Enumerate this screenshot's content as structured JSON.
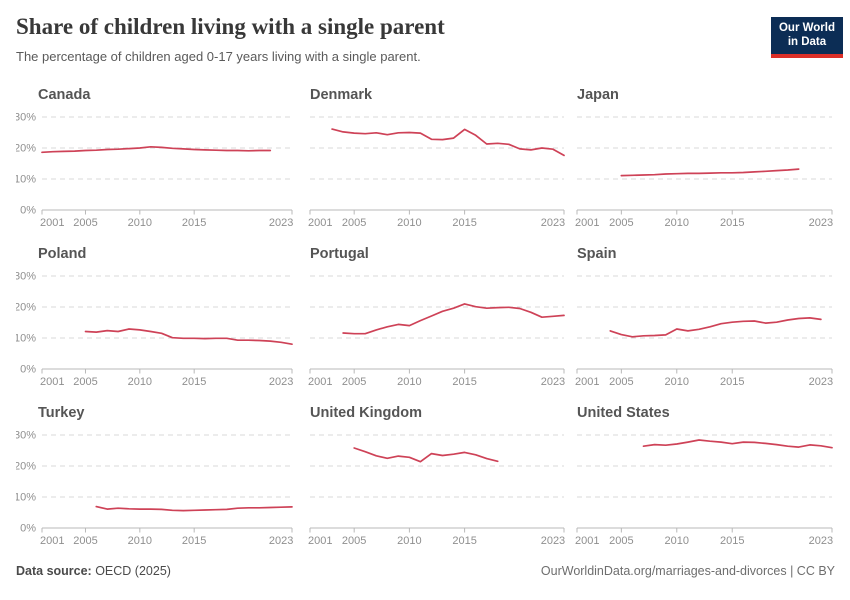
{
  "header": {
    "title": "Share of children living with a single parent",
    "subtitle": "The percentage of children aged 0-17 years living with a single parent.",
    "logo": {
      "line1": "Our World",
      "line2": "in Data",
      "bg_color": "#0c2d55",
      "accent_color": "#dc2f28"
    }
  },
  "footer": {
    "source_label": "Data source:",
    "source_value": " OECD (2025)",
    "right_text": "OurWorldinData.org/marriages-and-divorces | CC BY"
  },
  "colors": {
    "line": "#ce4257",
    "gridline": "#dadada",
    "axis": "#b8b8b8",
    "tick_text": "#8f8f8f"
  },
  "chart_data": {
    "type": "line",
    "title": "Share of children living with a single parent",
    "xlabel": "",
    "ylabel": "",
    "x_domain": [
      2001,
      2024
    ],
    "x_ticks": [
      2001,
      2005,
      2010,
      2015,
      2023
    ],
    "y_ticks": [
      0,
      10,
      20,
      30
    ],
    "y_tick_labels": [
      "0%",
      "10%",
      "20%",
      "30%"
    ],
    "ylim": [
      0,
      33
    ],
    "grid": "horizontal-dashed",
    "legend": "none",
    "line_color": "#ce4257",
    "charts": [
      {
        "name": "Canada",
        "years": [
          2001,
          2002,
          2003,
          2004,
          2005,
          2006,
          2007,
          2008,
          2009,
          2010,
          2011,
          2012,
          2013,
          2014,
          2015,
          2016,
          2017,
          2018,
          2019,
          2020,
          2021,
          2022
        ],
        "values": [
          18.6,
          18.8,
          18.9,
          19.0,
          19.2,
          19.3,
          19.5,
          19.6,
          19.8,
          20.0,
          20.4,
          20.2,
          19.9,
          19.7,
          19.5,
          19.4,
          19.3,
          19.2,
          19.2,
          19.1,
          19.2,
          19.2
        ]
      },
      {
        "name": "Denmark",
        "years": [
          2003,
          2004,
          2005,
          2006,
          2007,
          2008,
          2009,
          2010,
          2011,
          2012,
          2013,
          2014,
          2015,
          2016,
          2017,
          2018,
          2019,
          2020,
          2021,
          2022,
          2023,
          2024
        ],
        "values": [
          26.1,
          25.2,
          24.8,
          24.6,
          24.9,
          24.3,
          24.9,
          25.0,
          24.8,
          22.8,
          22.7,
          23.2,
          26.0,
          24.1,
          21.3,
          21.5,
          21.2,
          19.7,
          19.4,
          20.0,
          19.6,
          17.6
        ]
      },
      {
        "name": "Japan",
        "years": [
          2005,
          2006,
          2007,
          2008,
          2009,
          2010,
          2011,
          2012,
          2013,
          2014,
          2015,
          2016,
          2017,
          2018,
          2019,
          2020,
          2021
        ],
        "values": [
          11.1,
          11.2,
          11.3,
          11.4,
          11.6,
          11.7,
          11.8,
          11.8,
          11.9,
          12.0,
          12.0,
          12.1,
          12.3,
          12.5,
          12.7,
          12.9,
          13.2
        ]
      },
      {
        "name": "Poland",
        "years": [
          2005,
          2006,
          2007,
          2008,
          2009,
          2010,
          2011,
          2012,
          2013,
          2014,
          2015,
          2016,
          2017,
          2018,
          2019,
          2020,
          2021,
          2022,
          2023,
          2024
        ],
        "values": [
          12.1,
          11.9,
          12.4,
          12.1,
          12.9,
          12.6,
          12.1,
          11.5,
          10.1,
          9.9,
          9.9,
          9.8,
          9.9,
          9.9,
          9.3,
          9.3,
          9.2,
          9.0,
          8.6,
          8.0
        ]
      },
      {
        "name": "Portugal",
        "years": [
          2004,
          2005,
          2006,
          2007,
          2008,
          2009,
          2010,
          2011,
          2012,
          2013,
          2014,
          2015,
          2016,
          2017,
          2018,
          2019,
          2020,
          2021,
          2022,
          2023,
          2024
        ],
        "values": [
          11.6,
          11.4,
          11.4,
          12.6,
          13.6,
          14.4,
          14.0,
          15.6,
          17.1,
          18.6,
          19.6,
          21.0,
          20.1,
          19.6,
          19.8,
          19.9,
          19.5,
          18.3,
          16.7,
          17.0,
          17.3
        ]
      },
      {
        "name": "Spain",
        "years": [
          2004,
          2005,
          2006,
          2007,
          2008,
          2009,
          2010,
          2011,
          2012,
          2013,
          2014,
          2015,
          2016,
          2017,
          2018,
          2019,
          2020,
          2021,
          2022,
          2023
        ],
        "values": [
          12.3,
          11.1,
          10.4,
          10.7,
          10.8,
          11.0,
          12.9,
          12.3,
          12.8,
          13.6,
          14.6,
          15.1,
          15.4,
          15.5,
          14.8,
          15.1,
          15.8,
          16.3,
          16.5,
          16.0
        ]
      },
      {
        "name": "Turkey",
        "years": [
          2006,
          2007,
          2008,
          2009,
          2010,
          2011,
          2012,
          2013,
          2014,
          2015,
          2016,
          2017,
          2018,
          2019,
          2020,
          2021,
          2022,
          2023,
          2024
        ],
        "values": [
          6.9,
          6.1,
          6.4,
          6.2,
          6.1,
          6.1,
          6.0,
          5.7,
          5.6,
          5.7,
          5.8,
          5.9,
          6.0,
          6.4,
          6.5,
          6.5,
          6.6,
          6.7,
          6.8
        ]
      },
      {
        "name": "United Kingdom",
        "years": [
          2005,
          2006,
          2007,
          2008,
          2009,
          2010,
          2011,
          2012,
          2013,
          2014,
          2015,
          2016,
          2017,
          2018
        ],
        "values": [
          25.8,
          24.6,
          23.3,
          22.5,
          23.2,
          22.8,
          21.4,
          24.0,
          23.4,
          23.8,
          24.4,
          23.6,
          22.4,
          21.5
        ]
      },
      {
        "name": "United States",
        "years": [
          2007,
          2008,
          2009,
          2010,
          2011,
          2012,
          2013,
          2014,
          2015,
          2016,
          2017,
          2018,
          2019,
          2020,
          2021,
          2022,
          2023,
          2024
        ],
        "values": [
          26.4,
          26.9,
          26.7,
          27.1,
          27.7,
          28.4,
          28.0,
          27.7,
          27.2,
          27.7,
          27.6,
          27.3,
          26.9,
          26.4,
          26.1,
          26.8,
          26.5,
          25.9
        ]
      }
    ]
  }
}
